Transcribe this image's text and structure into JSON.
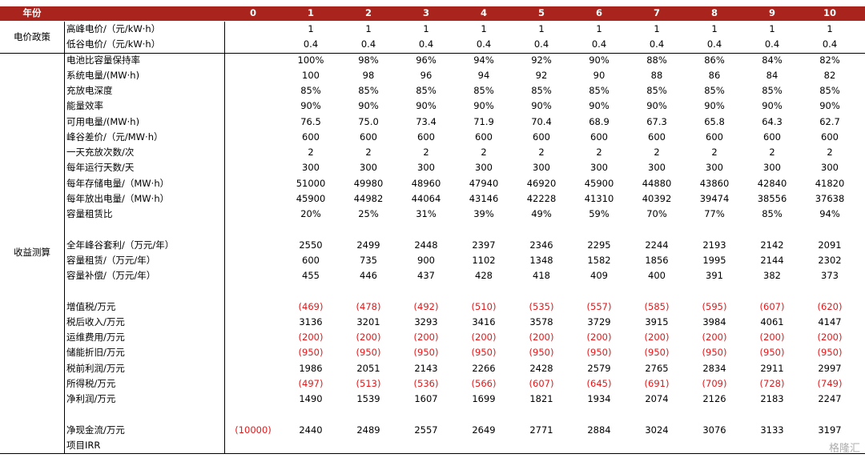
{
  "header": {
    "label": "年份",
    "years": [
      0,
      1,
      2,
      3,
      4,
      5,
      6,
      7,
      8,
      9,
      10
    ]
  },
  "groups": [
    {
      "name": "电价政策",
      "rows": [
        {
          "label": "高峰电价/（元/kW·h）",
          "cells": [
            null,
            "1",
            "1",
            "1",
            "1",
            "1",
            "1",
            "1",
            "1",
            "1",
            "1"
          ]
        },
        {
          "label": "低谷电价/（元/kW·h）",
          "cells": [
            null,
            "0.4",
            "0.4",
            "0.4",
            "0.4",
            "0.4",
            "0.4",
            "0.4",
            "0.4",
            "0.4",
            "0.4"
          ]
        }
      ]
    },
    {
      "name": "收益测算",
      "rows": [
        {
          "label": "电池比容量保持率",
          "cells": [
            null,
            "100%",
            "98%",
            "96%",
            "94%",
            "92%",
            "90%",
            "88%",
            "86%",
            "84%",
            "82%"
          ]
        },
        {
          "label": "系统电量/(MW·h)",
          "cells": [
            null,
            "100",
            "98",
            "96",
            "94",
            "92",
            "90",
            "88",
            "86",
            "84",
            "82"
          ]
        },
        {
          "label": "充放电深度",
          "cells": [
            null,
            "85%",
            "85%",
            "85%",
            "85%",
            "85%",
            "85%",
            "85%",
            "85%",
            "85%",
            "85%"
          ]
        },
        {
          "label": "能量效率",
          "cells": [
            null,
            "90%",
            "90%",
            "90%",
            "90%",
            "90%",
            "90%",
            "90%",
            "90%",
            "90%",
            "90%"
          ]
        },
        {
          "label": "可用电量/(MW·h)",
          "cells": [
            null,
            "76.5",
            "75.0",
            "73.4",
            "71.9",
            "70.4",
            "68.9",
            "67.3",
            "65.8",
            "64.3",
            "62.7"
          ]
        },
        {
          "label": "峰谷差价/（元/MW·h）",
          "cells": [
            null,
            "600",
            "600",
            "600",
            "600",
            "600",
            "600",
            "600",
            "600",
            "600",
            "600"
          ]
        },
        {
          "label": "一天充放次数/次",
          "cells": [
            null,
            "2",
            "2",
            "2",
            "2",
            "2",
            "2",
            "2",
            "2",
            "2",
            "2"
          ]
        },
        {
          "label": "每年运行天数/天",
          "cells": [
            null,
            "300",
            "300",
            "300",
            "300",
            "300",
            "300",
            "300",
            "300",
            "300",
            "300"
          ]
        },
        {
          "label": "每年存储电量/（MW·h）",
          "cells": [
            null,
            "51000",
            "49980",
            "48960",
            "47940",
            "46920",
            "45900",
            "44880",
            "43860",
            "42840",
            "41820"
          ]
        },
        {
          "label": "每年放出电量/（MW·h）",
          "cells": [
            null,
            "45900",
            "44982",
            "44064",
            "43146",
            "42228",
            "41310",
            "40392",
            "39474",
            "38556",
            "37638"
          ]
        },
        {
          "label": "容量租赁比",
          "cells": [
            null,
            "20%",
            "25%",
            "31%",
            "39%",
            "49%",
            "59%",
            "70%",
            "77%",
            "85%",
            "94%"
          ]
        },
        {
          "label": "全年峰谷套利/（万元/年）",
          "cells": [
            null,
            "2550",
            "2499",
            "2448",
            "2397",
            "2346",
            "2295",
            "2244",
            "2193",
            "2142",
            "2091"
          ]
        },
        {
          "label": "容量租赁/（万元/年）",
          "cells": [
            null,
            "600",
            "735",
            "900",
            "1102",
            "1348",
            "1582",
            "1856",
            "1995",
            "2144",
            "2302"
          ]
        },
        {
          "label": "容量补偿/（万元/年）",
          "cells": [
            null,
            "455",
            "446",
            "437",
            "428",
            "418",
            "409",
            "400",
            "391",
            "382",
            "373"
          ]
        },
        {
          "label": "增值税/万元",
          "cells": [
            null,
            "(469)",
            "(478)",
            "(492)",
            "(510)",
            "(535)",
            "(557)",
            "(585)",
            "(595)",
            "(607)",
            "(620)"
          ]
        },
        {
          "label": "税后收入/万元",
          "cells": [
            null,
            "3136",
            "3201",
            "3293",
            "3416",
            "3578",
            "3729",
            "3915",
            "3984",
            "4061",
            "4147"
          ]
        },
        {
          "label": "运维费用/万元",
          "cells": [
            null,
            "(200)",
            "(200)",
            "(200)",
            "(200)",
            "(200)",
            "(200)",
            "(200)",
            "(200)",
            "(200)",
            "(200)"
          ]
        },
        {
          "label": "储能折旧/万元",
          "cells": [
            null,
            "(950)",
            "(950)",
            "(950)",
            "(950)",
            "(950)",
            "(950)",
            "(950)",
            "(950)",
            "(950)",
            "(950)"
          ]
        },
        {
          "label": "税前利润/万元",
          "cells": [
            null,
            "1986",
            "2051",
            "2143",
            "2266",
            "2428",
            "2579",
            "2765",
            "2834",
            "2911",
            "2997"
          ]
        },
        {
          "label": "所得税/万元",
          "cells": [
            null,
            "(497)",
            "(513)",
            "(536)",
            "(566)",
            "(607)",
            "(645)",
            "(691)",
            "(709)",
            "(728)",
            "(749)"
          ]
        },
        {
          "label": "净利润/万元",
          "cells": [
            null,
            "1490",
            "1539",
            "1607",
            "1699",
            "1821",
            "1934",
            "2074",
            "2126",
            "2183",
            "2247"
          ]
        },
        {
          "label": "净现金流/万元",
          "cells": [
            "(10000)",
            "2440",
            "2489",
            "2557",
            "2649",
            "2771",
            "2884",
            "3024",
            "3076",
            "3133",
            "3197"
          ]
        },
        {
          "label": "项目IRR"
        }
      ]
    }
  ],
  "watermark": "格隆汇"
}
